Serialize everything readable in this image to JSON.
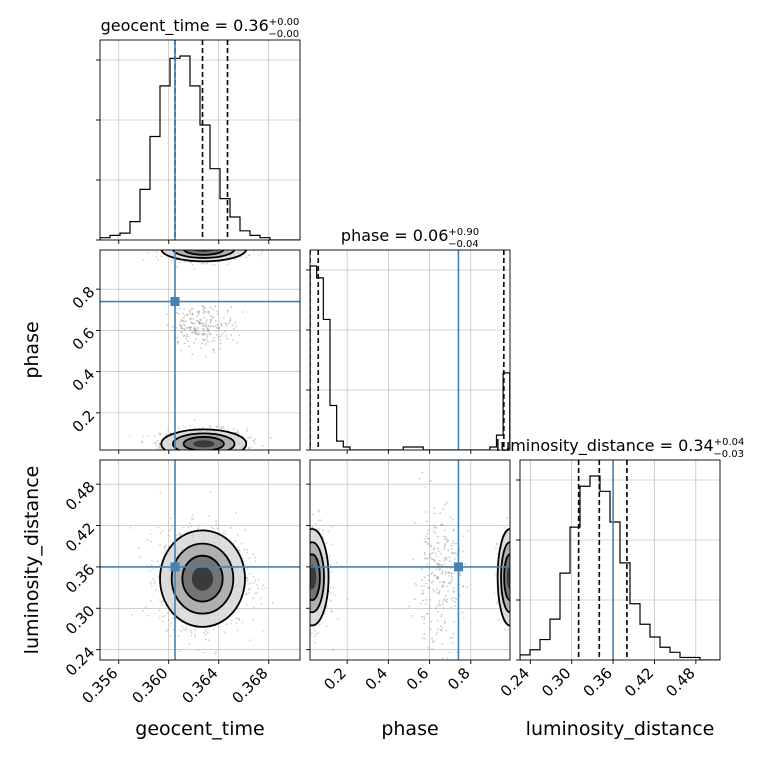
{
  "chart_data": {
    "type": "corner",
    "parameters": [
      {
        "name": "geocent_time",
        "label": "geocent_time",
        "range": [
          0.3545,
          0.3705
        ],
        "ticks": [
          "0.356",
          "0.360",
          "0.364",
          "0.368"
        ],
        "injection": 0.3605,
        "quantiles": [
          0.3605,
          0.3627,
          0.3647
        ]
      },
      {
        "name": "phase",
        "label": "phase",
        "range": [
          0.02,
          0.99
        ],
        "ticks": [
          "0.2",
          "0.4",
          "0.6",
          "0.8"
        ],
        "injection": 0.74,
        "quantiles": [
          0.02,
          0.06,
          0.96
        ]
      },
      {
        "name": "luminosity_distance",
        "label": "luminosity_distance",
        "range": [
          0.225,
          0.515
        ],
        "ticks": [
          "0.24",
          "0.30",
          "0.36",
          "0.42",
          "0.48"
        ],
        "injection": 0.36,
        "quantiles": [
          0.31,
          0.34,
          0.38
        ]
      }
    ],
    "titles": {
      "geocent_time": {
        "prefix": "geocent_time = 0.36",
        "plus": "+0.00",
        "minus": "−0.00"
      },
      "phase": {
        "prefix": "phase = 0.06",
        "plus": "+0.90",
        "minus": "−0.04"
      },
      "luminosity_distance": {
        "prefix": "luminosity_distance = 0.34",
        "plus": "+0.04",
        "minus": "−0.03"
      }
    },
    "histograms": {
      "geocent_time": {
        "edges_start": 0.3545,
        "bin_width": 0.0008,
        "counts": [
          1,
          2,
          3,
          8,
          22,
          45,
          67,
          79,
          80,
          67,
          50,
          31,
          18,
          10,
          4,
          2,
          1,
          0,
          0,
          0
        ]
      },
      "phase": {
        "edges_start": 0.02,
        "bin_width": 0.0323,
        "counts": [
          62,
          58,
          44,
          15,
          3,
          1,
          0,
          0,
          0,
          0,
          0,
          0,
          0,
          0,
          1,
          1,
          1,
          0,
          0,
          0,
          0,
          0,
          0,
          0,
          0,
          0,
          0,
          1,
          5,
          26
        ]
      },
      "luminosity_distance": {
        "edges_start": 0.225,
        "bin_width": 0.0145,
        "counts": [
          2,
          4,
          8,
          16,
          34,
          52,
          68,
          72,
          66,
          54,
          38,
          22,
          14,
          9,
          5,
          3,
          1,
          1,
          0,
          0
        ]
      }
    },
    "injection_color": "#4682b4",
    "grid": true
  }
}
